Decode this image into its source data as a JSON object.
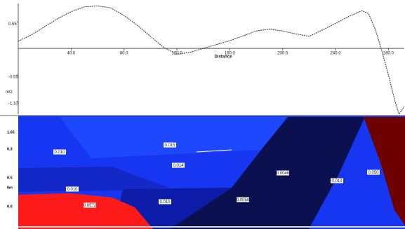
{
  "chart_data": {
    "type": "line",
    "x_label": "Distance",
    "y_label": "mG",
    "x": [
      0,
      10,
      20,
      30,
      40,
      50,
      60,
      70,
      80,
      90,
      100,
      110,
      120,
      130,
      140,
      150,
      160,
      170,
      180,
      190,
      200,
      210,
      220,
      230,
      240,
      250,
      260,
      265,
      270,
      275,
      280,
      285,
      288,
      292
    ],
    "values": [
      0.15,
      0.28,
      0.45,
      0.62,
      0.76,
      0.86,
      0.88,
      0.84,
      0.68,
      0.48,
      0.25,
      0.02,
      -0.12,
      -0.08,
      0.0,
      0.08,
      0.16,
      0.26,
      0.36,
      0.4,
      0.36,
      0.3,
      0.25,
      0.38,
      0.52,
      0.66,
      0.78,
      0.72,
      0.4,
      -0.05,
      -0.55,
      -1.1,
      -1.36,
      -1.2
    ],
    "color": "#333333",
    "xlim": [
      0,
      292
    ],
    "ylim": [
      -1.39,
      0.93
    ],
    "xticks": [
      {
        "value": 40,
        "label": "40.0"
      },
      {
        "value": 80,
        "label": "80.0"
      },
      {
        "value": 120,
        "label": "120.0"
      },
      {
        "value": 160,
        "label": "160.0"
      },
      {
        "value": 200,
        "label": "200.0"
      },
      {
        "value": 240,
        "label": "240.0"
      },
      {
        "value": 280,
        "label": "280.0"
      }
    ],
    "yticks": [
      0.55,
      -0.55,
      {
        "value": -1.1,
        "label": "-1.10"
      }
    ]
  },
  "section": {
    "left_labels": [
      "1.65",
      "0.3",
      "0.5",
      "6m",
      "0.0"
    ],
    "labels": [
      "0.010",
      "0.015",
      "0.014",
      "0.0046",
      "0.010",
      "0.050",
      "0.010",
      "0.010",
      "0.0058",
      "0.0572"
    ]
  }
}
